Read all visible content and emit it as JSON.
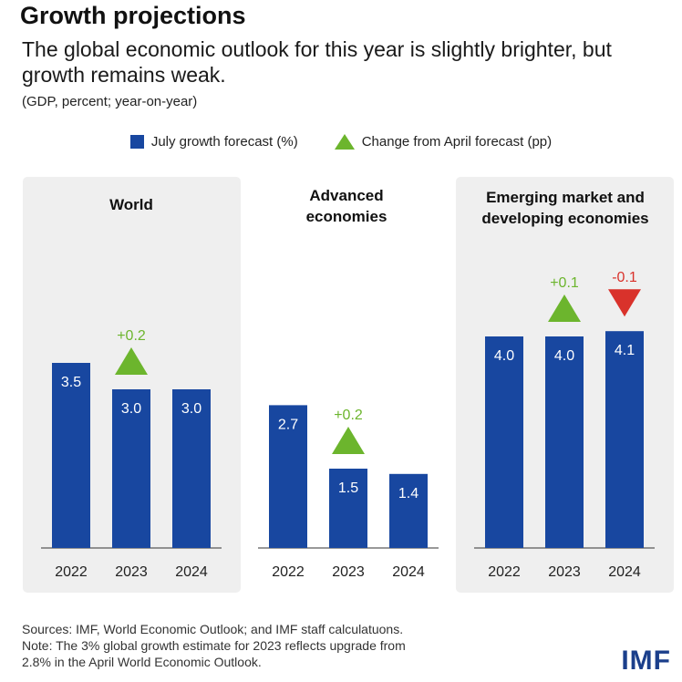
{
  "header": {
    "title": "Growth projections",
    "subtitle": "The global economic outlook for this year is slightly brighter, but growth remains weak.",
    "units": "(GDP, percent; year-on-year)"
  },
  "legend": {
    "forecast_label": "July growth forecast (%)",
    "change_label": "Change from April forecast (pp)"
  },
  "colors": {
    "bar": "#1847a0",
    "up": "#6cb52d",
    "down": "#d9322b",
    "panel": "#efefef"
  },
  "chart_data": [
    {
      "type": "bar",
      "title": "World",
      "categories": [
        "2022",
        "2023",
        "2024"
      ],
      "series": [
        {
          "name": "July growth forecast (%)",
          "values": [
            3.5,
            3.0,
            3.0
          ]
        }
      ],
      "changes": [
        null,
        "+0.2",
        null
      ],
      "change_direction": [
        null,
        "up",
        null
      ],
      "ylim": [
        0,
        4.4
      ]
    },
    {
      "type": "bar",
      "title": "Advanced economies",
      "categories": [
        "2022",
        "2023",
        "2024"
      ],
      "series": [
        {
          "name": "July growth forecast (%)",
          "values": [
            2.7,
            1.5,
            1.4
          ]
        }
      ],
      "changes": [
        null,
        "+0.2",
        null
      ],
      "change_direction": [
        null,
        "up",
        null
      ],
      "ylim": [
        0,
        4.4
      ]
    },
    {
      "type": "bar",
      "title": "Emerging market and developing economies",
      "categories": [
        "2022",
        "2023",
        "2024"
      ],
      "series": [
        {
          "name": "July growth forecast (%)",
          "values": [
            4.0,
            4.0,
            4.1
          ]
        }
      ],
      "changes": [
        null,
        "+0.1",
        "-0.1"
      ],
      "change_direction": [
        null,
        "up",
        "down"
      ],
      "ylim": [
        0,
        4.4
      ]
    }
  ],
  "footer": {
    "sources": "Sources: IMF, World Economic Outlook; and IMF staff calculatuons.",
    "note_line1": "Note: The 3% global growth estimate for 2023 reflects upgrade from",
    "note_line2": "2.8% in the April World Economic Outlook.",
    "logo": "IMF"
  }
}
